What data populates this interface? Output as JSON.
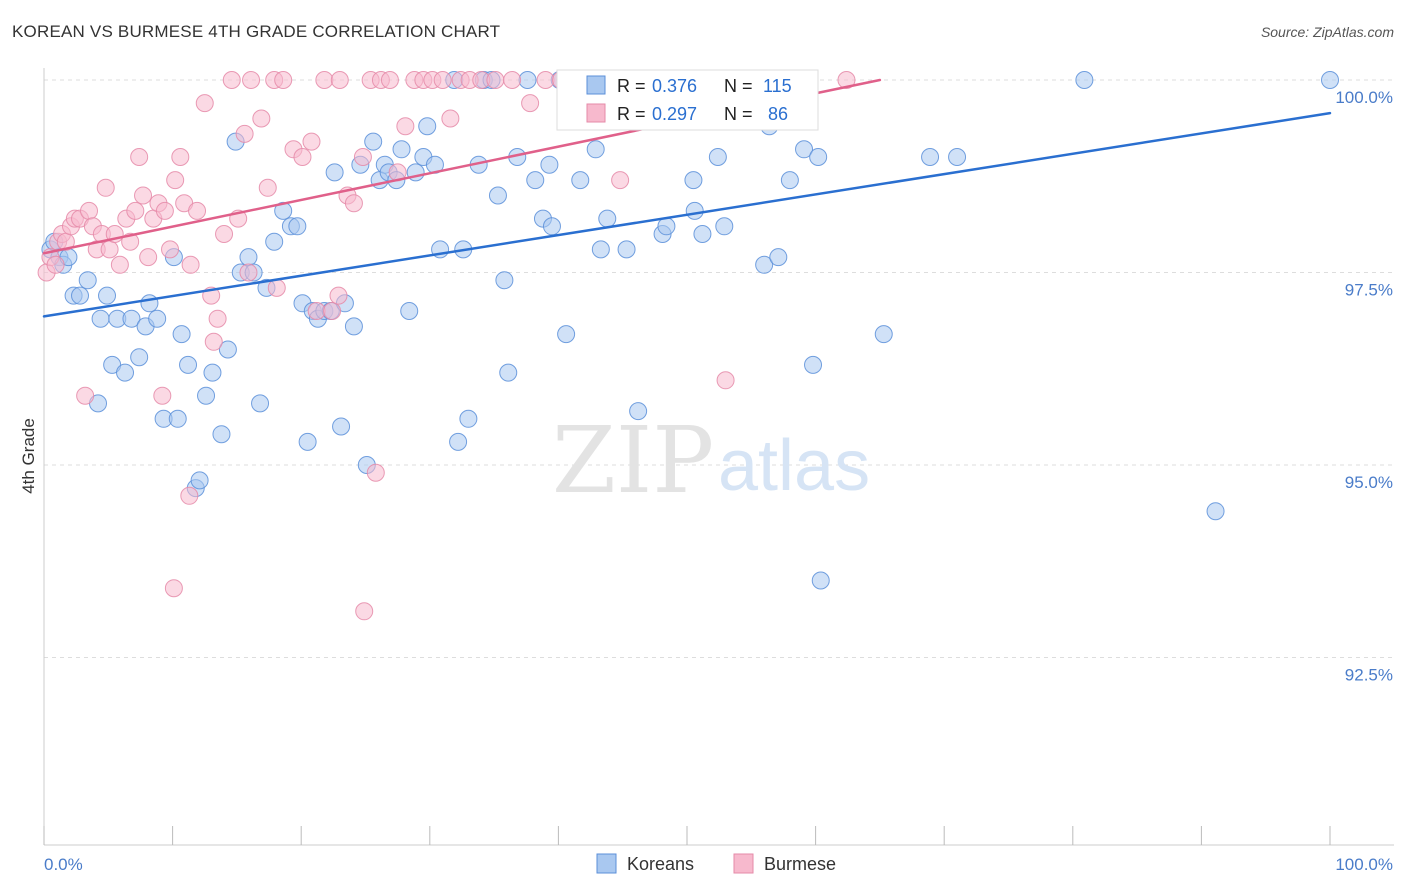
{
  "title": "KOREAN VS BURMESE 4TH GRADE CORRELATION CHART",
  "source": "Source: ZipAtlas.com",
  "watermark": {
    "zip": "ZIP",
    "atlas": "atlas"
  },
  "colors": {
    "koreans_fill": "#a9c8f0",
    "koreans_stroke": "#5b8fd9",
    "koreans_line": "#2a6fd0",
    "burmese_fill": "#f7b9cd",
    "burmese_stroke": "#e58aa8",
    "burmese_line": "#e0608a",
    "axis_label": "#4a7cc9",
    "grid": "#dddddd"
  },
  "legend_box": {
    "rows": [
      {
        "r_label": "R =",
        "r_value": "0.376",
        "n_label": "N =",
        "n_value": "115"
      },
      {
        "r_label": "R =",
        "r_value": "0.297",
        "n_label": "N =",
        "n_value": "86"
      }
    ]
  },
  "chart_data": {
    "type": "scatter",
    "title": "KOREAN VS BURMESE 4TH GRADE CORRELATION CHART",
    "xlabel": "",
    "ylabel": "4th Grade",
    "x_tick_labels": [
      "0.0%",
      "100.0%"
    ],
    "y_tick_labels": [
      "100.0%",
      "97.5%",
      "95.0%",
      "92.5%"
    ],
    "y_ticks": [
      100.0,
      97.5,
      95.0,
      92.5
    ],
    "xlim": [
      0,
      100
    ],
    "ylim": [
      90.0,
      100.15
    ],
    "grid": true,
    "legend_position": "bottom",
    "series": [
      {
        "name": "Koreans",
        "r": 0.376,
        "n": 115,
        "trendline": [
          [
            0,
            96.93
          ],
          [
            100,
            99.57
          ]
        ],
        "points": [
          [
            0.5,
            97.8
          ],
          [
            0.8,
            97.9
          ],
          [
            1.2,
            97.7
          ],
          [
            1.5,
            97.6
          ],
          [
            1.9,
            97.7
          ],
          [
            2.3,
            97.2
          ],
          [
            2.8,
            97.2
          ],
          [
            3.4,
            97.4
          ],
          [
            4.2,
            95.8
          ],
          [
            4.4,
            96.9
          ],
          [
            4.9,
            97.2
          ],
          [
            5.3,
            96.3
          ],
          [
            5.7,
            96.9
          ],
          [
            6.3,
            96.2
          ],
          [
            6.8,
            96.9
          ],
          [
            7.4,
            96.4
          ],
          [
            7.9,
            96.8
          ],
          [
            8.2,
            97.1
          ],
          [
            8.8,
            96.9
          ],
          [
            9.3,
            95.6
          ],
          [
            10.1,
            97.7
          ],
          [
            10.4,
            95.6
          ],
          [
            10.7,
            96.7
          ],
          [
            11.2,
            96.3
          ],
          [
            11.8,
            94.7
          ],
          [
            12.1,
            94.8
          ],
          [
            12.6,
            95.9
          ],
          [
            13.1,
            96.2
          ],
          [
            13.8,
            95.4
          ],
          [
            14.3,
            96.5
          ],
          [
            14.9,
            99.2
          ],
          [
            15.3,
            97.5
          ],
          [
            15.9,
            97.7
          ],
          [
            16.3,
            97.5
          ],
          [
            16.8,
            95.8
          ],
          [
            17.3,
            97.3
          ],
          [
            17.9,
            97.9
          ],
          [
            18.6,
            98.3
          ],
          [
            19.2,
            98.1
          ],
          [
            19.7,
            98.1
          ],
          [
            20.1,
            97.1
          ],
          [
            20.5,
            95.3
          ],
          [
            20.9,
            97.0
          ],
          [
            21.3,
            96.9
          ],
          [
            21.8,
            97.0
          ],
          [
            22.3,
            97.0
          ],
          [
            22.6,
            98.8
          ],
          [
            23.1,
            95.5
          ],
          [
            23.4,
            97.1
          ],
          [
            24.1,
            96.8
          ],
          [
            24.6,
            98.9
          ],
          [
            25.1,
            95.0
          ],
          [
            25.6,
            99.2
          ],
          [
            26.1,
            98.7
          ],
          [
            26.5,
            98.9
          ],
          [
            26.8,
            98.8
          ],
          [
            27.4,
            98.7
          ],
          [
            27.8,
            99.1
          ],
          [
            28.4,
            97.0
          ],
          [
            28.9,
            98.8
          ],
          [
            29.5,
            99.0
          ],
          [
            29.8,
            99.4
          ],
          [
            30.4,
            98.9
          ],
          [
            30.8,
            97.8
          ],
          [
            31.9,
            100.0
          ],
          [
            32.2,
            95.3
          ],
          [
            32.6,
            97.8
          ],
          [
            33.0,
            95.6
          ],
          [
            33.8,
            98.9
          ],
          [
            34.2,
            100.0
          ],
          [
            34.8,
            100.0
          ],
          [
            35.3,
            98.5
          ],
          [
            35.8,
            97.4
          ],
          [
            36.1,
            96.2
          ],
          [
            36.8,
            99.0
          ],
          [
            37.6,
            100.0
          ],
          [
            38.2,
            98.7
          ],
          [
            38.8,
            98.2
          ],
          [
            39.3,
            98.9
          ],
          [
            39.5,
            98.1
          ],
          [
            40.1,
            100.0
          ],
          [
            40.6,
            96.7
          ],
          [
            40.9,
            100.0
          ],
          [
            41.7,
            98.7
          ],
          [
            42.9,
            99.1
          ],
          [
            43.3,
            97.8
          ],
          [
            43.8,
            98.2
          ],
          [
            45.3,
            97.8
          ],
          [
            46.2,
            95.7
          ],
          [
            47.2,
            100.0
          ],
          [
            48.1,
            98.0
          ],
          [
            48.4,
            98.1
          ],
          [
            50.5,
            98.7
          ],
          [
            50.6,
            98.3
          ],
          [
            51.2,
            98.0
          ],
          [
            52.4,
            99.0
          ],
          [
            52.9,
            98.1
          ],
          [
            54.2,
            100.0
          ],
          [
            56.0,
            97.6
          ],
          [
            56.4,
            99.4
          ],
          [
            57.1,
            97.7
          ],
          [
            58.0,
            98.7
          ],
          [
            59.1,
            99.1
          ],
          [
            59.8,
            96.3
          ],
          [
            60.2,
            99.0
          ],
          [
            60.4,
            93.5
          ],
          [
            65.3,
            96.7
          ],
          [
            68.9,
            99.0
          ],
          [
            71.0,
            99.0
          ],
          [
            80.9,
            100.0
          ],
          [
            91.1,
            94.4
          ],
          [
            100.0,
            100.0
          ]
        ]
      },
      {
        "name": "Burmese",
        "r": 0.297,
        "n": 86,
        "trendline": [
          [
            0,
            97.75
          ],
          [
            65,
            100.0
          ]
        ],
        "points": [
          [
            0.2,
            97.5
          ],
          [
            0.5,
            97.7
          ],
          [
            0.9,
            97.6
          ],
          [
            1.1,
            97.9
          ],
          [
            1.4,
            98.0
          ],
          [
            1.7,
            97.9
          ],
          [
            2.1,
            98.1
          ],
          [
            2.4,
            98.2
          ],
          [
            2.8,
            98.2
          ],
          [
            3.2,
            95.9
          ],
          [
            3.5,
            98.3
          ],
          [
            3.8,
            98.1
          ],
          [
            4.1,
            97.8
          ],
          [
            4.5,
            98.0
          ],
          [
            4.8,
            98.6
          ],
          [
            5.1,
            97.8
          ],
          [
            5.5,
            98.0
          ],
          [
            5.9,
            97.6
          ],
          [
            6.4,
            98.2
          ],
          [
            6.7,
            97.9
          ],
          [
            7.1,
            98.3
          ],
          [
            7.4,
            99.0
          ],
          [
            7.7,
            98.5
          ],
          [
            8.1,
            97.7
          ],
          [
            8.5,
            98.2
          ],
          [
            8.9,
            98.4
          ],
          [
            9.4,
            98.3
          ],
          [
            9.8,
            97.8
          ],
          [
            10.2,
            98.7
          ],
          [
            10.6,
            99.0
          ],
          [
            10.9,
            98.4
          ],
          [
            11.4,
            97.6
          ],
          [
            11.9,
            98.3
          ],
          [
            12.5,
            99.7
          ],
          [
            13.0,
            97.2
          ],
          [
            13.5,
            96.9
          ],
          [
            14.0,
            98.0
          ],
          [
            14.6,
            100.0
          ],
          [
            15.1,
            98.2
          ],
          [
            15.6,
            99.3
          ],
          [
            16.1,
            100.0
          ],
          [
            16.9,
            99.5
          ],
          [
            17.4,
            98.6
          ],
          [
            17.9,
            100.0
          ],
          [
            18.6,
            100.0
          ],
          [
            19.4,
            99.1
          ],
          [
            20.1,
            99.0
          ],
          [
            20.8,
            99.2
          ],
          [
            21.2,
            97.0
          ],
          [
            21.8,
            100.0
          ],
          [
            22.4,
            97.0
          ],
          [
            23.0,
            100.0
          ],
          [
            23.6,
            98.5
          ],
          [
            24.1,
            98.4
          ],
          [
            24.8,
            99.0
          ],
          [
            25.4,
            100.0
          ],
          [
            26.2,
            100.0
          ],
          [
            26.9,
            100.0
          ],
          [
            27.5,
            98.8
          ],
          [
            28.1,
            99.4
          ],
          [
            28.8,
            100.0
          ],
          [
            29.5,
            100.0
          ],
          [
            30.2,
            100.0
          ],
          [
            31.0,
            100.0
          ],
          [
            31.6,
            99.5
          ],
          [
            32.4,
            100.0
          ],
          [
            33.1,
            100.0
          ],
          [
            34.0,
            100.0
          ],
          [
            35.1,
            100.0
          ],
          [
            36.4,
            100.0
          ],
          [
            37.8,
            99.7
          ],
          [
            39.0,
            100.0
          ],
          [
            40.2,
            100.0
          ],
          [
            41.5,
            100.0
          ],
          [
            44.8,
            98.7
          ],
          [
            53.0,
            96.1
          ],
          [
            62.4,
            100.0
          ],
          [
            10.1,
            93.4
          ],
          [
            24.9,
            93.1
          ],
          [
            11.3,
            94.6
          ],
          [
            25.8,
            94.9
          ],
          [
            9.2,
            95.9
          ],
          [
            13.2,
            96.6
          ],
          [
            18.1,
            97.3
          ],
          [
            22.9,
            97.2
          ],
          [
            15.9,
            97.5
          ]
        ]
      }
    ]
  }
}
